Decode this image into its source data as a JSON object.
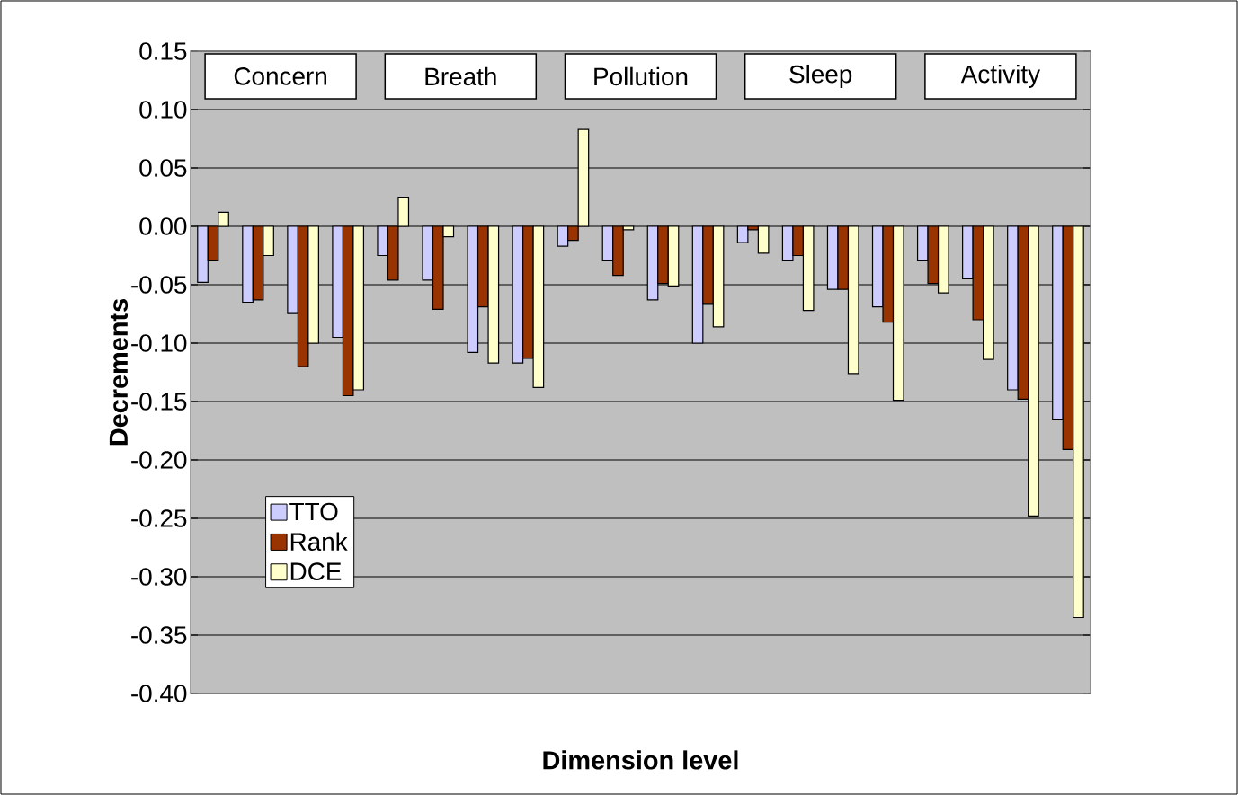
{
  "chart_data": {
    "type": "bar",
    "xlabel": "Dimension level",
    "ylabel": "Decrements",
    "categories": [
      null,
      null,
      null,
      null,
      null,
      null,
      null,
      null,
      null,
      null,
      null,
      null,
      null,
      null,
      null,
      null,
      null,
      null,
      null,
      null
    ],
    "series": [
      {
        "name": "TTO",
        "color": "#ccccff",
        "values": [
          -0.048,
          -0.065,
          -0.074,
          -0.095,
          -0.025,
          -0.046,
          -0.108,
          -0.117,
          -0.017,
          -0.029,
          -0.063,
          -0.1,
          -0.014,
          -0.029,
          -0.054,
          -0.069,
          -0.029,
          -0.045,
          -0.14,
          -0.165
        ]
      },
      {
        "name": "Rank",
        "color": "#993300",
        "values": [
          -0.029,
          -0.063,
          -0.12,
          -0.145,
          -0.046,
          -0.071,
          -0.069,
          -0.113,
          -0.012,
          -0.042,
          -0.049,
          -0.066,
          -0.003,
          -0.025,
          -0.054,
          -0.082,
          -0.049,
          -0.08,
          -0.148,
          -0.191
        ]
      },
      {
        "name": "DCE",
        "color": "#ffffcc",
        "values": [
          0.012,
          -0.025,
          -0.1,
          -0.14,
          0.025,
          -0.009,
          -0.117,
          -0.138,
          0.083,
          -0.003,
          -0.051,
          -0.086,
          -0.023,
          -0.072,
          -0.126,
          -0.149,
          -0.057,
          -0.114,
          -0.248,
          -0.335
        ]
      }
    ],
    "annotations": [
      "Concern",
      "Breath",
      "Pollution",
      "Sleep",
      "Activity"
    ],
    "ylim": [
      -0.4,
      0.15
    ],
    "yticks": [
      {
        "value": -0.4,
        "label": "-0.40"
      },
      {
        "value": -0.35,
        "label": "-0.35"
      },
      {
        "value": -0.3,
        "label": "-0.30"
      },
      {
        "value": -0.25,
        "label": "-0.25"
      },
      {
        "value": -0.2,
        "label": "-0.20"
      },
      {
        "value": -0.15,
        "label": "-0.15"
      },
      {
        "value": -0.1,
        "label": "-0.10"
      },
      {
        "value": -0.05,
        "label": "-0.05"
      },
      {
        "value": 0,
        "label": "0.00"
      },
      {
        "value": 0.05,
        "label": "0.05"
      },
      {
        "value": 0.1,
        "label": "0.10"
      },
      {
        "value": 0.15,
        "label": "0.15"
      }
    ],
    "grid": "y",
    "legend": "left"
  }
}
